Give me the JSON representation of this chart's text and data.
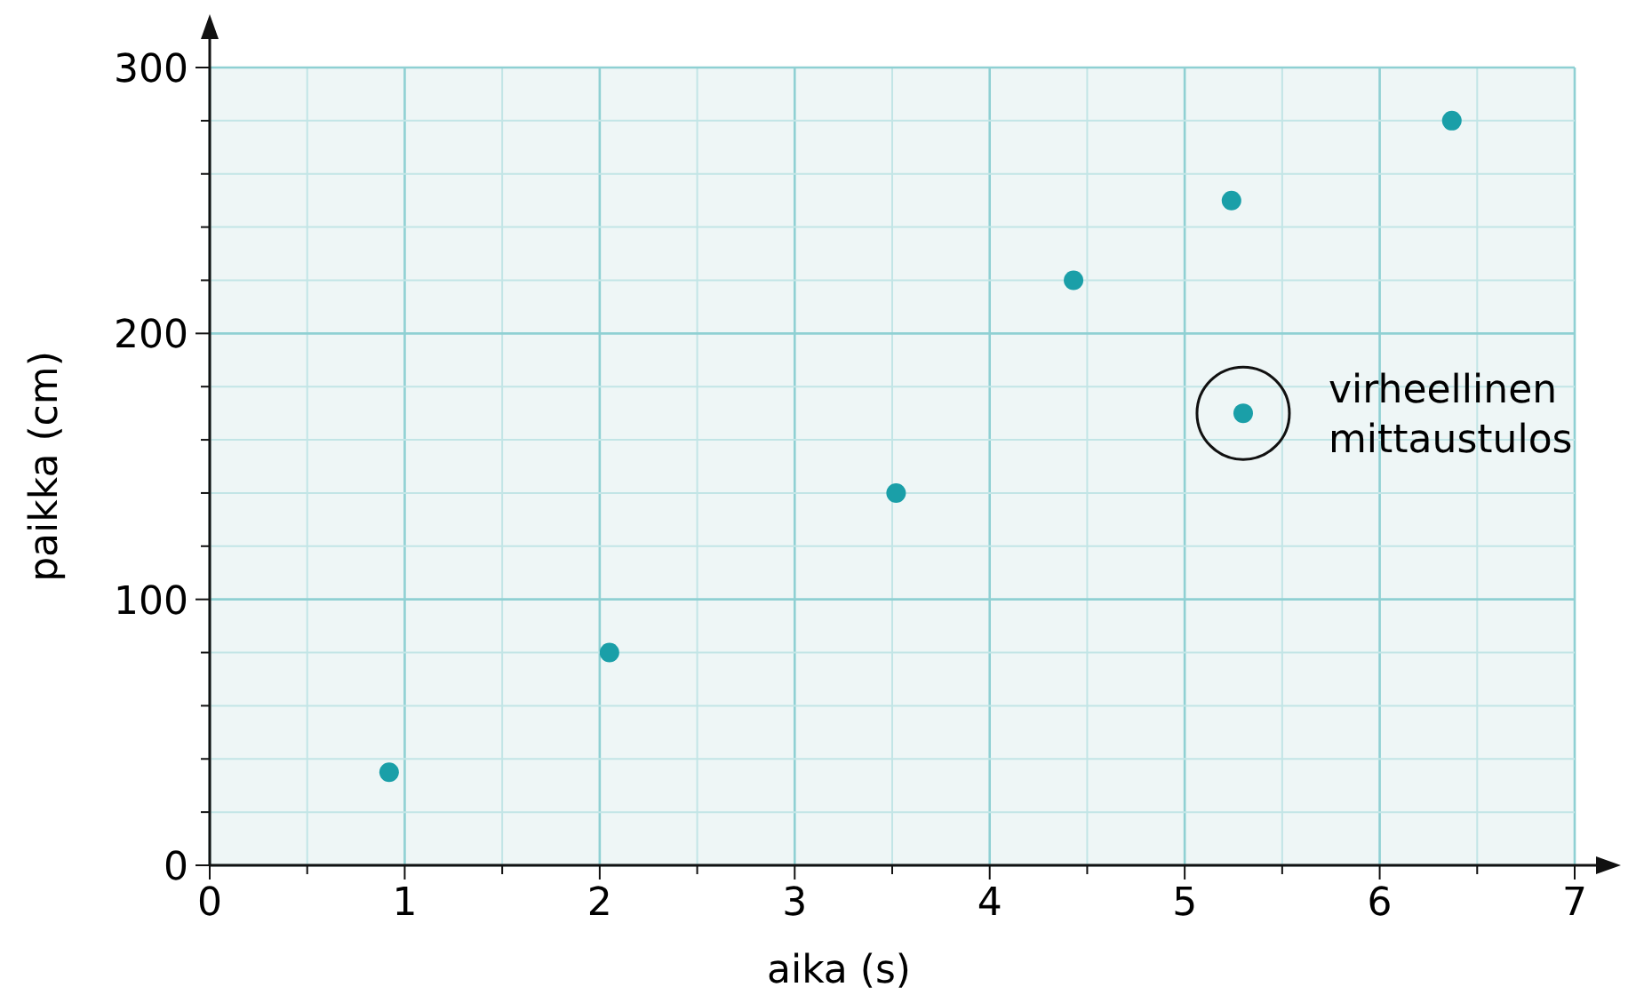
{
  "chart_data": {
    "type": "scatter",
    "xlabel": "aika (s)",
    "ylabel": "paikka (cm)",
    "x": [
      0.92,
      2.05,
      3.52,
      4.43,
      5.24,
      6.37,
      5.3
    ],
    "values": [
      35,
      80,
      140,
      220,
      250,
      280,
      170
    ],
    "color": "#1a9fa8",
    "marker": "circle",
    "grid": true,
    "xlim": [
      0,
      7
    ],
    "ylim": [
      0,
      300
    ],
    "xticks": [
      0,
      {
        "value": 0.5,
        "label": null
      },
      1,
      {
        "value": 1.5,
        "label": null
      },
      2,
      {
        "value": 2.5,
        "label": null
      },
      3,
      {
        "value": 3.5,
        "label": null
      },
      4,
      {
        "value": 4.5,
        "label": null
      },
      5,
      {
        "value": 5.5,
        "label": null
      },
      6,
      {
        "value": 6.5,
        "label": null
      },
      7
    ],
    "yticks": [
      0,
      {
        "value": 20,
        "label": null
      },
      {
        "value": 40,
        "label": null
      },
      {
        "value": 60,
        "label": null
      },
      {
        "value": 80,
        "label": null
      },
      100,
      {
        "value": 120,
        "label": null
      },
      {
        "value": 140,
        "label": null
      },
      {
        "value": 160,
        "label": null
      },
      {
        "value": 180,
        "label": null
      },
      200,
      {
        "value": 220,
        "label": null
      },
      {
        "value": 240,
        "label": null
      },
      {
        "value": 260,
        "label": null
      },
      {
        "value": 280,
        "label": null
      },
      300
    ],
    "annotations": [
      {
        "text": "virheellinen mittaustulos",
        "x": 5.3,
        "y": 170
      }
    ]
  }
}
